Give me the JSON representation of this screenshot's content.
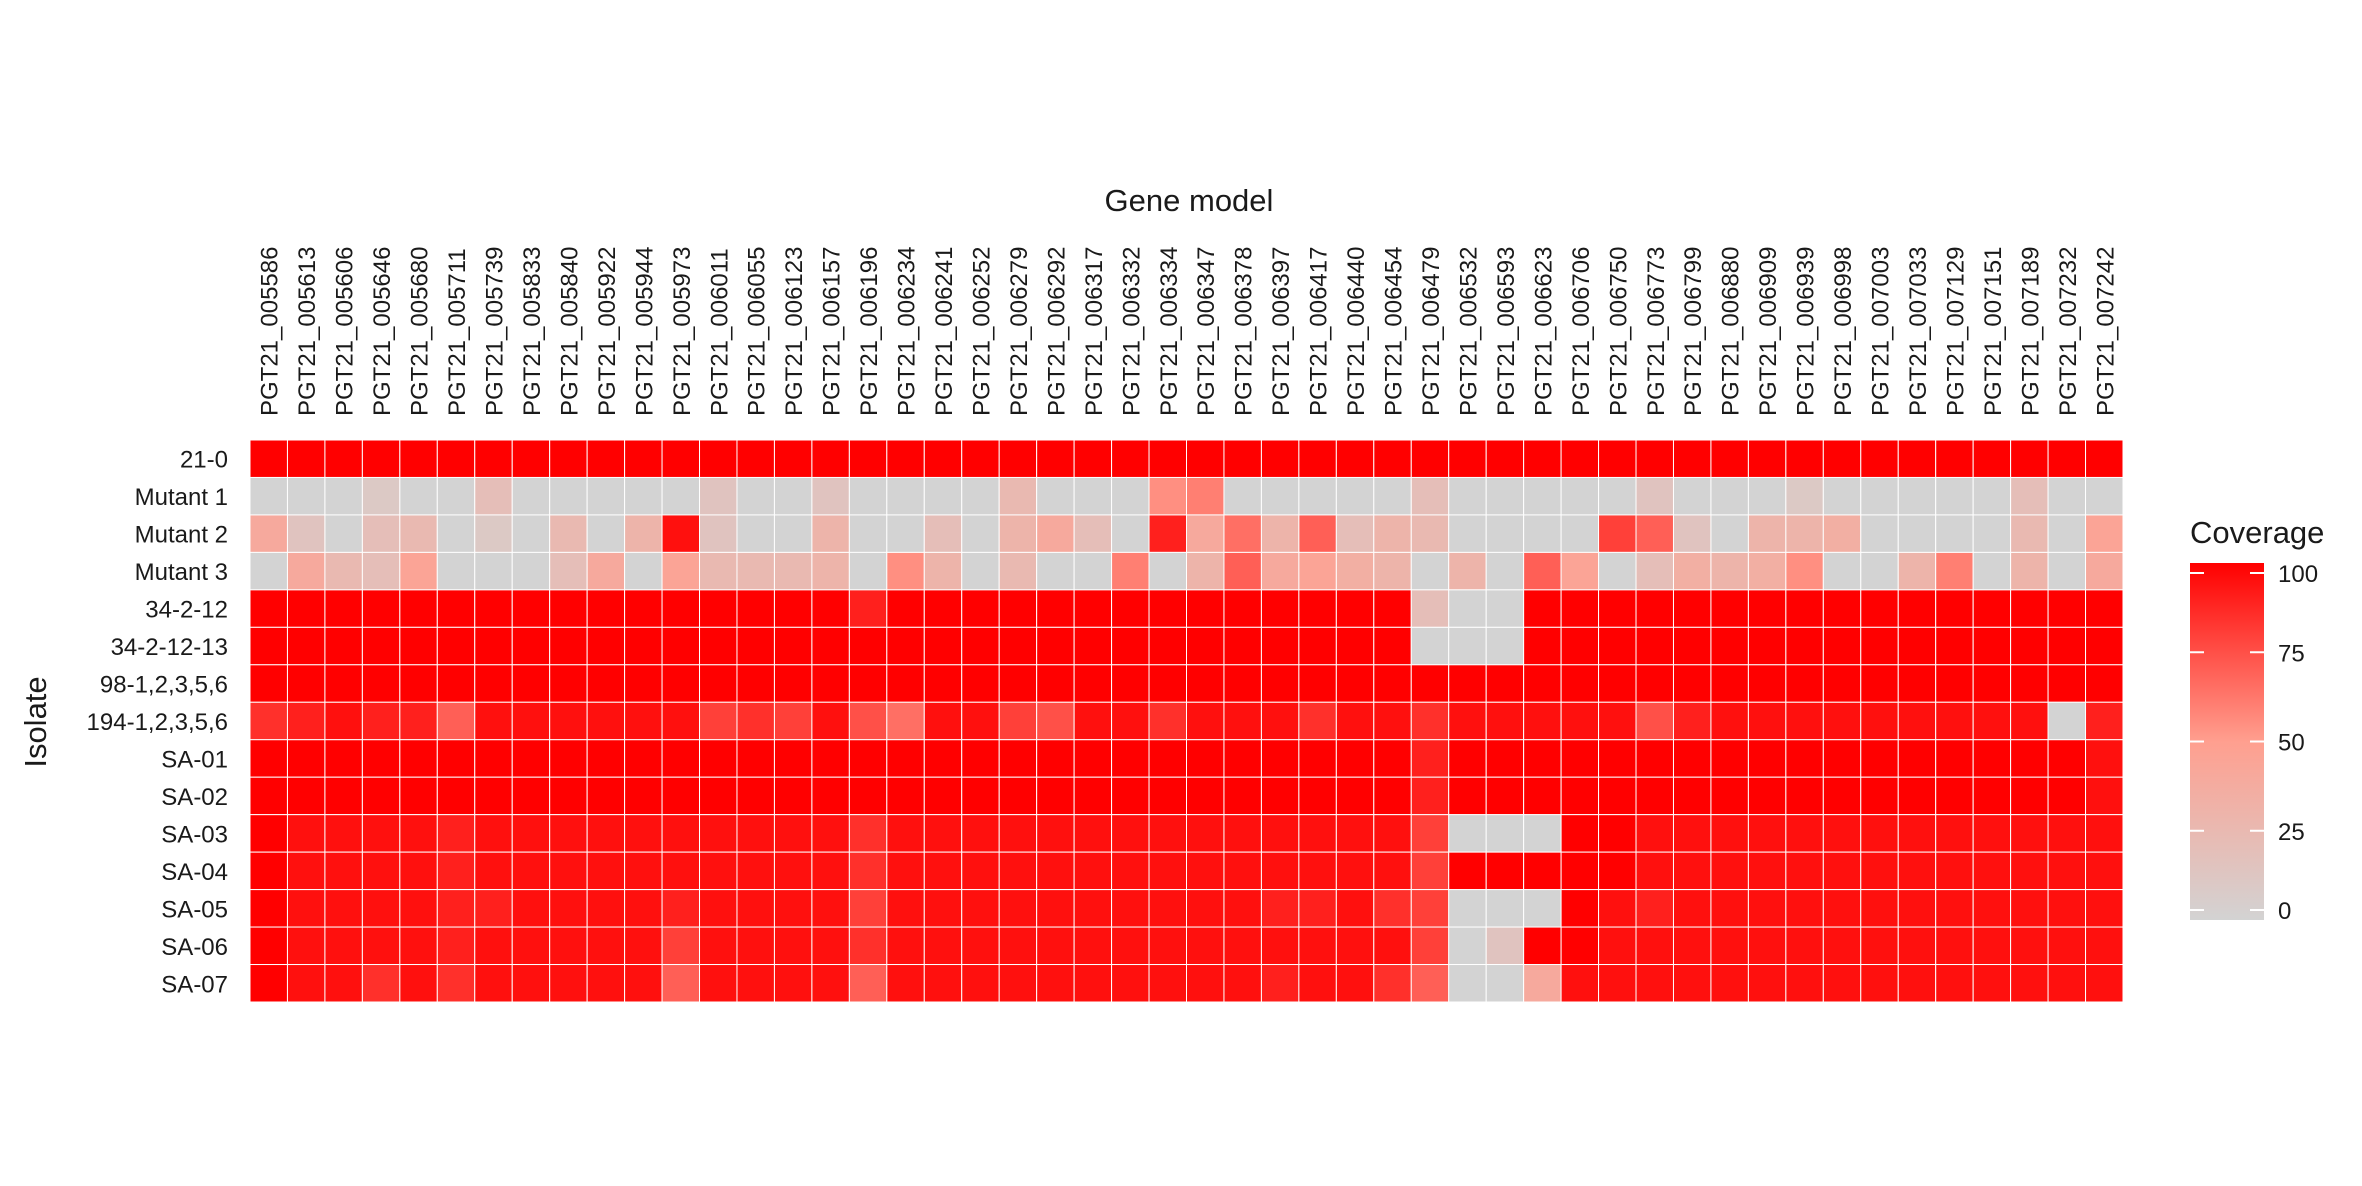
{
  "chart_data": {
    "type": "heatmap",
    "title": "",
    "xlabel": "Gene model",
    "ylabel": "Isolate",
    "legend": {
      "title": "Coverage",
      "position": "right",
      "ticks": [
        "100",
        "75",
        "50",
        "25",
        "0"
      ],
      "range": [
        0,
        100
      ],
      "low_color": "#d3d3d3",
      "high_color": "#ff0000"
    },
    "columns": [
      "PGT21_005586",
      "PGT21_005613",
      "PGT21_005606",
      "PGT21_005646",
      "PGT21_005680",
      "PGT21_005711",
      "PGT21_005739",
      "PGT21_005833",
      "PGT21_005840",
      "PGT21_005922",
      "PGT21_005944",
      "PGT21_005973",
      "PGT21_006011",
      "PGT21_006055",
      "PGT21_006123",
      "PGT21_006157",
      "PGT21_006196",
      "PGT21_006234",
      "PGT21_006241",
      "PGT21_006252",
      "PGT21_006279",
      "PGT21_006292",
      "PGT21_006317",
      "PGT21_006332",
      "PGT21_006334",
      "PGT21_006347",
      "PGT21_006378",
      "PGT21_006397",
      "PGT21_006417",
      "PGT21_006440",
      "PGT21_006454",
      "PGT21_006479",
      "PGT21_006532",
      "PGT21_006593",
      "PGT21_006623",
      "PGT21_006706",
      "PGT21_006750",
      "PGT21_006773",
      "PGT21_006799",
      "PGT21_006880",
      "PGT21_006909",
      "PGT21_006939",
      "PGT21_006998",
      "PGT21_007003",
      "PGT21_007033",
      "PGT21_007129",
      "PGT21_007151",
      "PGT21_007189",
      "PGT21_007232",
      "PGT21_007242"
    ],
    "rows": [
      "21-0",
      "Mutant 1",
      "Mutant 2",
      "Mutant 3",
      "34-2-12",
      "34-2-12-13",
      "98-1,2,3,5,6",
      "194-1,2,3,5,6",
      "SA-01",
      "SA-02",
      "SA-03",
      "SA-04",
      "SA-05",
      "SA-06",
      "SA-07"
    ],
    "values": [
      [
        100,
        100,
        100,
        100,
        100,
        100,
        100,
        100,
        100,
        100,
        100,
        100,
        100,
        100,
        100,
        100,
        100,
        100,
        100,
        100,
        100,
        100,
        100,
        100,
        100,
        100,
        100,
        100,
        100,
        100,
        100,
        100,
        100,
        100,
        100,
        100,
        100,
        100,
        100,
        100,
        100,
        100,
        100,
        100,
        100,
        100,
        100,
        100,
        100,
        100
      ],
      [
        0,
        0,
        0,
        10,
        0,
        0,
        20,
        0,
        0,
        0,
        0,
        0,
        15,
        0,
        0,
        15,
        0,
        0,
        0,
        0,
        25,
        0,
        0,
        0,
        55,
        60,
        0,
        0,
        0,
        0,
        0,
        20,
        0,
        0,
        0,
        0,
        0,
        15,
        0,
        0,
        0,
        10,
        0,
        0,
        0,
        0,
        0,
        20,
        0,
        0
      ],
      [
        40,
        15,
        0,
        20,
        25,
        0,
        10,
        0,
        25,
        0,
        30,
        95,
        15,
        0,
        0,
        30,
        0,
        0,
        20,
        0,
        30,
        40,
        20,
        0,
        90,
        40,
        65,
        30,
        70,
        20,
        30,
        25,
        0,
        0,
        0,
        0,
        80,
        70,
        15,
        0,
        30,
        30,
        35,
        0,
        0,
        0,
        0,
        25,
        0,
        45
      ],
      [
        0,
        40,
        25,
        20,
        45,
        0,
        0,
        0,
        20,
        40,
        0,
        45,
        25,
        25,
        25,
        30,
        0,
        55,
        30,
        0,
        25,
        0,
        0,
        60,
        0,
        30,
        70,
        40,
        45,
        35,
        30,
        0,
        30,
        0,
        70,
        45,
        0,
        20,
        35,
        30,
        35,
        55,
        0,
        0,
        30,
        60,
        0,
        30,
        0,
        40
      ],
      [
        100,
        100,
        100,
        100,
        100,
        100,
        100,
        100,
        100,
        100,
        100,
        100,
        100,
        100,
        100,
        100,
        90,
        100,
        100,
        100,
        100,
        100,
        100,
        100,
        100,
        100,
        100,
        100,
        100,
        100,
        100,
        20,
        0,
        0,
        100,
        100,
        100,
        100,
        100,
        100,
        100,
        100,
        100,
        100,
        100,
        100,
        100,
        100,
        100,
        100
      ],
      [
        100,
        100,
        100,
        100,
        100,
        100,
        100,
        100,
        100,
        100,
        100,
        100,
        100,
        100,
        100,
        100,
        100,
        100,
        100,
        100,
        100,
        100,
        100,
        100,
        100,
        100,
        100,
        100,
        100,
        100,
        100,
        0,
        0,
        0,
        100,
        100,
        100,
        100,
        100,
        100,
        100,
        100,
        100,
        100,
        100,
        100,
        100,
        100,
        100,
        100
      ],
      [
        100,
        100,
        100,
        100,
        100,
        100,
        100,
        100,
        100,
        100,
        100,
        100,
        100,
        100,
        100,
        100,
        100,
        100,
        100,
        100,
        100,
        100,
        100,
        100,
        100,
        100,
        100,
        100,
        100,
        100,
        100,
        100,
        100,
        100,
        100,
        100,
        100,
        100,
        100,
        100,
        100,
        100,
        100,
        100,
        100,
        100,
        100,
        100,
        100,
        100
      ],
      [
        85,
        90,
        95,
        90,
        90,
        70,
        95,
        95,
        95,
        95,
        95,
        95,
        80,
        85,
        80,
        95,
        75,
        65,
        95,
        95,
        80,
        75,
        95,
        95,
        85,
        95,
        95,
        95,
        85,
        95,
        95,
        85,
        95,
        95,
        95,
        95,
        95,
        75,
        90,
        95,
        95,
        95,
        95,
        95,
        95,
        95,
        95,
        95,
        0,
        90
      ],
      [
        100,
        100,
        100,
        100,
        100,
        100,
        100,
        100,
        100,
        100,
        100,
        100,
        100,
        100,
        100,
        100,
        100,
        100,
        100,
        100,
        100,
        100,
        100,
        100,
        100,
        100,
        100,
        100,
        100,
        100,
        100,
        90,
        100,
        100,
        100,
        100,
        100,
        100,
        100,
        100,
        100,
        100,
        100,
        100,
        100,
        100,
        100,
        100,
        100,
        95
      ],
      [
        100,
        100,
        100,
        100,
        100,
        100,
        100,
        100,
        100,
        100,
        100,
        100,
        100,
        100,
        100,
        100,
        100,
        100,
        100,
        100,
        100,
        100,
        100,
        100,
        100,
        100,
        100,
        100,
        100,
        100,
        100,
        90,
        100,
        100,
        100,
        100,
        100,
        100,
        100,
        100,
        100,
        100,
        100,
        100,
        100,
        100,
        100,
        100,
        100,
        95
      ],
      [
        100,
        95,
        95,
        95,
        95,
        90,
        95,
        95,
        95,
        95,
        95,
        95,
        95,
        95,
        95,
        95,
        85,
        95,
        95,
        95,
        95,
        95,
        95,
        95,
        95,
        95,
        95,
        95,
        95,
        95,
        95,
        80,
        0,
        0,
        0,
        100,
        100,
        95,
        95,
        95,
        95,
        95,
        95,
        95,
        95,
        95,
        95,
        95,
        95,
        95
      ],
      [
        100,
        95,
        95,
        95,
        95,
        90,
        95,
        95,
        95,
        95,
        95,
        95,
        95,
        95,
        95,
        95,
        85,
        95,
        95,
        95,
        95,
        95,
        95,
        95,
        95,
        95,
        95,
        95,
        95,
        95,
        95,
        80,
        100,
        100,
        100,
        100,
        100,
        95,
        95,
        95,
        95,
        95,
        95,
        95,
        95,
        95,
        95,
        95,
        95,
        95
      ],
      [
        100,
        95,
        95,
        95,
        95,
        90,
        90,
        95,
        95,
        95,
        95,
        90,
        95,
        95,
        95,
        95,
        80,
        95,
        95,
        95,
        95,
        95,
        95,
        95,
        95,
        95,
        95,
        90,
        90,
        95,
        85,
        80,
        0,
        0,
        0,
        100,
        95,
        90,
        95,
        95,
        95,
        95,
        95,
        95,
        95,
        95,
        95,
        95,
        95,
        95
      ],
      [
        100,
        95,
        95,
        95,
        95,
        90,
        95,
        95,
        95,
        95,
        95,
        80,
        95,
        95,
        95,
        95,
        85,
        95,
        95,
        95,
        95,
        95,
        95,
        95,
        95,
        95,
        95,
        95,
        95,
        95,
        95,
        80,
        0,
        15,
        100,
        100,
        95,
        95,
        95,
        95,
        95,
        95,
        95,
        95,
        95,
        95,
        95,
        95,
        95,
        95
      ],
      [
        100,
        95,
        95,
        85,
        95,
        85,
        95,
        95,
        95,
        95,
        95,
        70,
        95,
        95,
        95,
        95,
        70,
        95,
        95,
        95,
        95,
        95,
        95,
        95,
        95,
        95,
        95,
        90,
        95,
        95,
        85,
        70,
        0,
        0,
        40,
        95,
        95,
        95,
        95,
        95,
        95,
        95,
        95,
        95,
        95,
        95,
        95,
        95,
        95,
        95
      ]
    ]
  }
}
